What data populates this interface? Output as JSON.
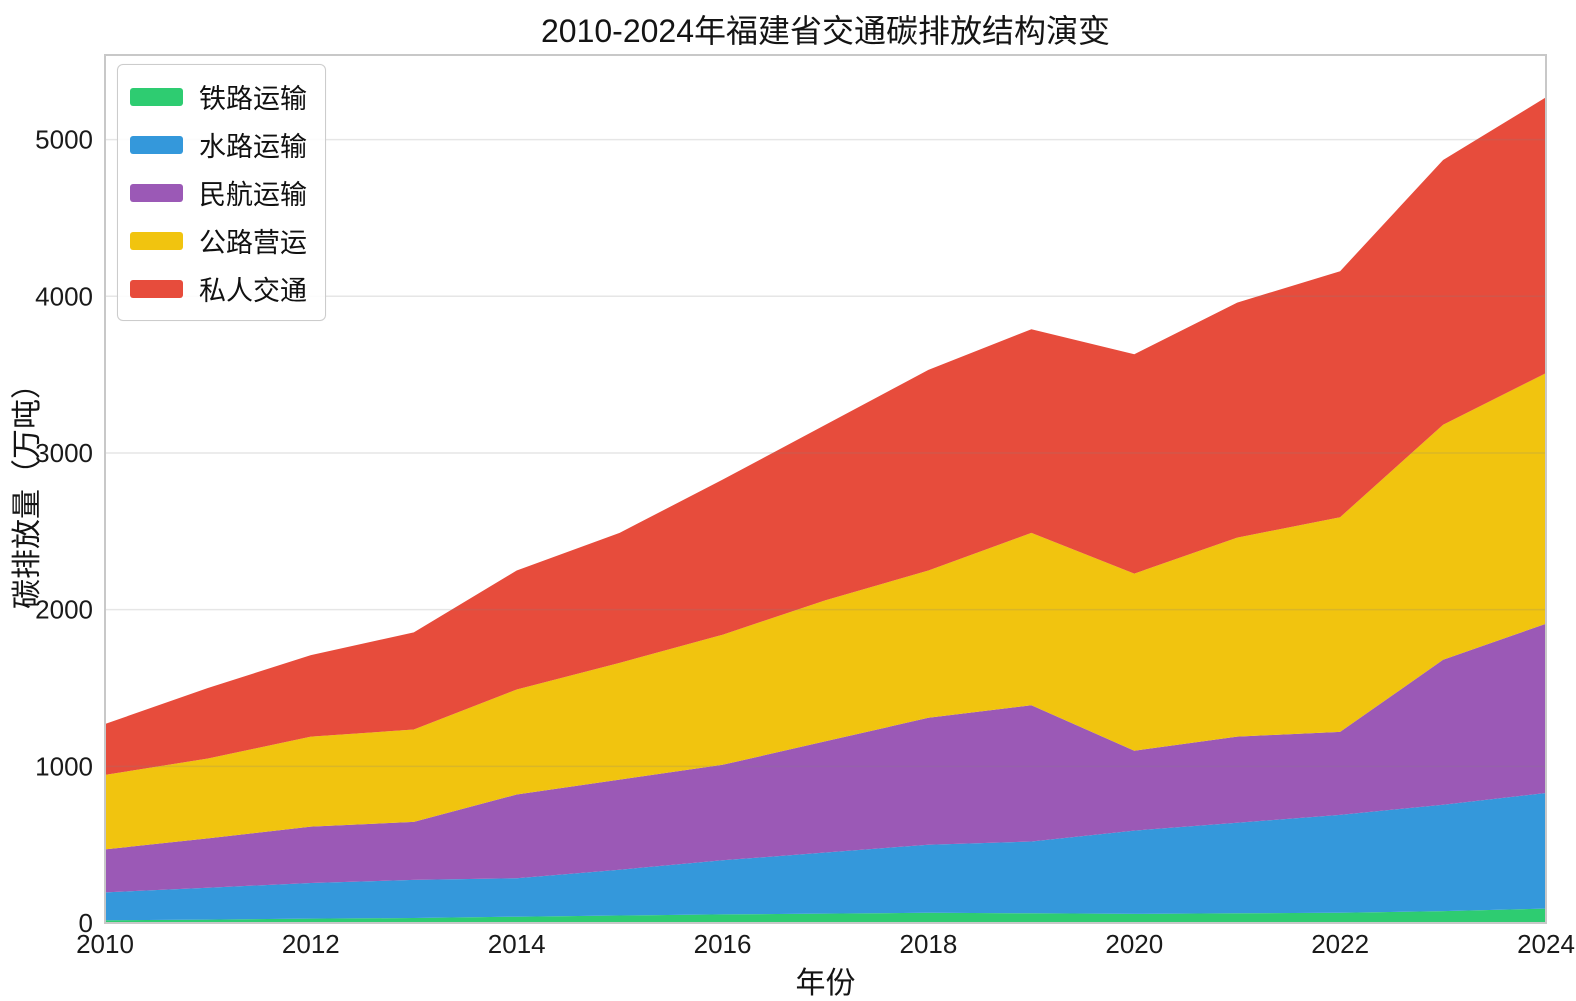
{
  "figure": {
    "title": "2010-2024年福建省交通碳排放结构演变",
    "xlabel": "年份",
    "ylabel": "碳排放量（万吨）"
  },
  "colors": {
    "background": "#ffffff",
    "text": "#141414",
    "tick_text": "#1a1a1a",
    "grid": "#808080",
    "grid_opacity": 0.2,
    "spine": "#c8c8c8",
    "legend_background": "rgba(255,255,255,0.85)",
    "legend_border": "#cccccc"
  },
  "chart_data": {
    "type": "area",
    "stacked": true,
    "title": "2010-2024年福建省交通碳排放结构演变",
    "xlabel": "年份",
    "ylabel": "碳排放量（万吨）",
    "x": [
      2010,
      2011,
      2012,
      2013,
      2014,
      2015,
      2016,
      2017,
      2018,
      2019,
      2020,
      2021,
      2022,
      2023,
      2024
    ],
    "x_ticks": [
      2010,
      2012,
      2014,
      2016,
      2018,
      2020,
      2022,
      2024
    ],
    "y_ticks": [
      0,
      1000,
      2000,
      3000,
      4000,
      5000
    ],
    "ylim": [
      0,
      5540
    ],
    "grid": "horizontal",
    "legend_position": "upper-left",
    "series": [
      {
        "name": "铁路运输",
        "key": "railway-transport",
        "color": "#2ecc71",
        "values": [
          18,
          22,
          28,
          32,
          40,
          48,
          55,
          60,
          65,
          62,
          58,
          62,
          65,
          76,
          92
        ]
      },
      {
        "name": "水路运输",
        "key": "waterway-transport",
        "color": "#3498db",
        "values": [
          177,
          203,
          227,
          243,
          245,
          292,
          345,
          390,
          435,
          458,
          532,
          578,
          625,
          679,
          738
        ]
      },
      {
        "name": "民航运输",
        "key": "civil-aviation",
        "color": "#9b59b6",
        "values": [
          275,
          315,
          360,
          370,
          535,
          575,
          610,
          710,
          810,
          870,
          510,
          550,
          530,
          925,
          1080
        ]
      },
      {
        "name": "公路营运",
        "key": "road-operations",
        "color": "#f1c40f",
        "values": [
          475,
          510,
          575,
          590,
          670,
          745,
          830,
          900,
          940,
          1100,
          1130,
          1270,
          1370,
          1500,
          1600
        ]
      },
      {
        "name": "私人交通",
        "key": "private-transport",
        "color": "#e74c3c",
        "values": [
          325,
          450,
          520,
          620,
          760,
          830,
          990,
          1120,
          1280,
          1300,
          1400,
          1500,
          1570,
          1690,
          1760
        ]
      }
    ],
    "totals": [
      1270,
      1500,
      1710,
      1855,
      2250,
      2490,
      2830,
      3180,
      3530,
      3790,
      3630,
      3960,
      4160,
      4870,
      5270
    ]
  }
}
